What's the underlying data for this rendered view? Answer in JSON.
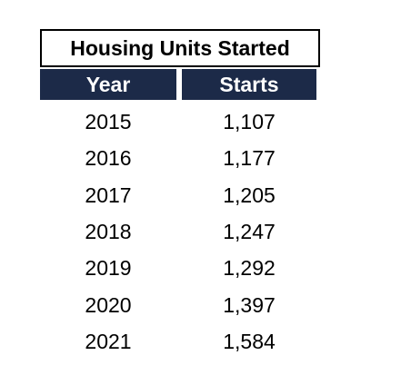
{
  "table": {
    "title": "Housing Units Started",
    "columns": [
      "Year",
      "Starts"
    ],
    "rows": [
      [
        "2015",
        "1,107"
      ],
      [
        "2016",
        "1,177"
      ],
      [
        "2017",
        "1,205"
      ],
      [
        "2018",
        "1,247"
      ],
      [
        "2019",
        "1,292"
      ],
      [
        "2020",
        "1,397"
      ],
      [
        "2021",
        "1,584"
      ]
    ]
  }
}
